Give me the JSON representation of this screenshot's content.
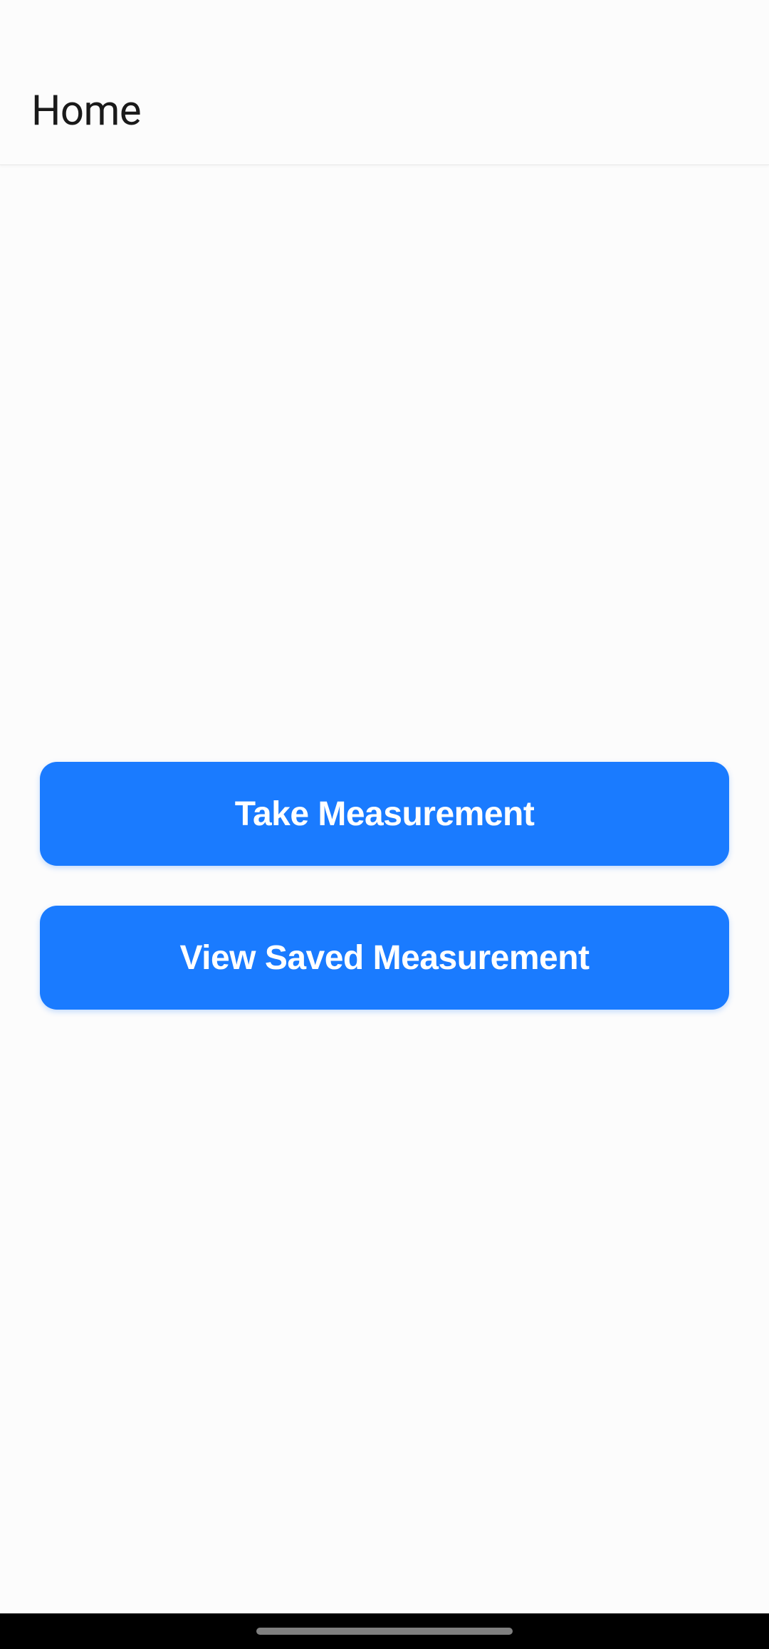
{
  "header": {
    "title": "Home"
  },
  "buttons": {
    "take_measurement": "Take Measurement",
    "view_saved_measurement": "View Saved Measurement"
  },
  "colors": {
    "button_bg": "#1a7bff",
    "button_text": "#ffffff",
    "background": "#fcfcfc",
    "header_text": "#1a1a1a",
    "navbar_bg": "#000000",
    "navbar_handle": "#808080"
  }
}
